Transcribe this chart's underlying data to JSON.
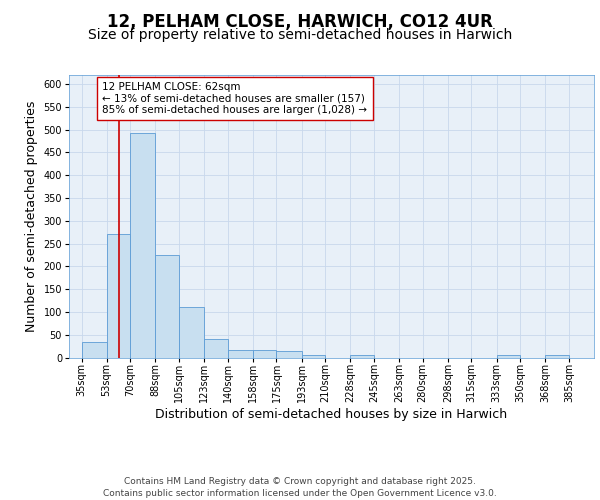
{
  "title_line1": "12, PELHAM CLOSE, HARWICH, CO12 4UR",
  "title_line2": "Size of property relative to semi-detached houses in Harwich",
  "xlabel": "Distribution of semi-detached houses by size in Harwich",
  "ylabel": "Number of semi-detached properties",
  "bar_left_edges": [
    35,
    53,
    70,
    88,
    105,
    123,
    140,
    158,
    175,
    193,
    210,
    228,
    245,
    263,
    280,
    298,
    315,
    333,
    350,
    368
  ],
  "bar_widths": [
    18,
    17,
    18,
    17,
    18,
    17,
    18,
    17,
    18,
    17,
    18,
    17,
    18,
    17,
    18,
    17,
    18,
    17,
    18,
    17
  ],
  "bar_heights": [
    35,
    270,
    493,
    225,
    110,
    40,
    17,
    16,
    14,
    5,
    0,
    5,
    0,
    0,
    0,
    0,
    0,
    5,
    0,
    5
  ],
  "tick_labels": [
    "35sqm",
    "53sqm",
    "70sqm",
    "88sqm",
    "105sqm",
    "123sqm",
    "140sqm",
    "158sqm",
    "175sqm",
    "193sqm",
    "210sqm",
    "228sqm",
    "245sqm",
    "263sqm",
    "280sqm",
    "298sqm",
    "315sqm",
    "333sqm",
    "350sqm",
    "368sqm",
    "385sqm"
  ],
  "tick_positions": [
    35,
    53,
    70,
    88,
    105,
    123,
    140,
    158,
    175,
    193,
    210,
    228,
    245,
    263,
    280,
    298,
    315,
    333,
    350,
    368,
    385
  ],
  "bar_color": "#c8dff0",
  "bar_edge_color": "#5b9bd5",
  "red_line_x": 62,
  "red_line_color": "#cc0000",
  "annotation_text": "12 PELHAM CLOSE: 62sqm\n← 13% of semi-detached houses are smaller (157)\n85% of semi-detached houses are larger (1,028) →",
  "annotation_box_color": "#ffffff",
  "annotation_box_edge_color": "#cc0000",
  "ylim": [
    0,
    620
  ],
  "xlim": [
    26,
    403
  ],
  "yticks": [
    0,
    50,
    100,
    150,
    200,
    250,
    300,
    350,
    400,
    450,
    500,
    550,
    600
  ],
  "grid_color": "#c8d8ec",
  "bg_color": "#e8f0f8",
  "footer_text": "Contains HM Land Registry data © Crown copyright and database right 2025.\nContains public sector information licensed under the Open Government Licence v3.0.",
  "title_fontsize": 12,
  "subtitle_fontsize": 10,
  "axis_label_fontsize": 9,
  "tick_fontsize": 7,
  "annotation_fontsize": 7.5,
  "footer_fontsize": 6.5
}
